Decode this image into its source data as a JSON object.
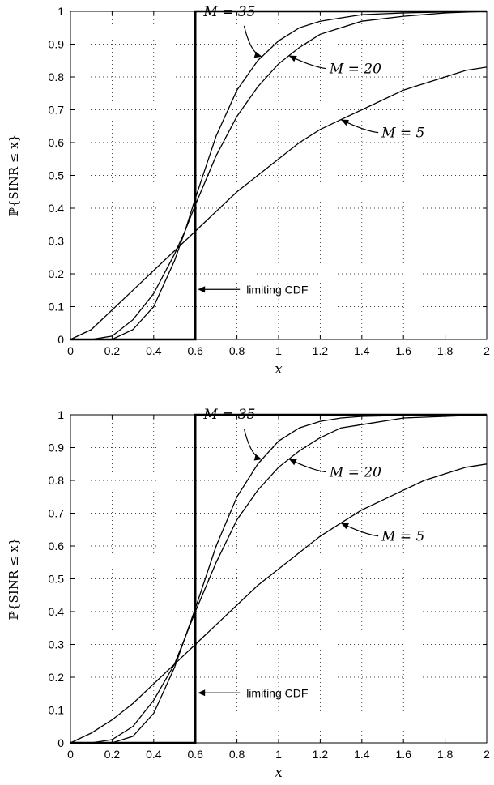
{
  "chart_data": [
    {
      "type": "line",
      "xlabel": "x",
      "ylabel": "ℙ{SINR ≤ x}",
      "xlim": [
        0,
        2
      ],
      "ylim": [
        0,
        1
      ],
      "xticks": [
        "0",
        "0.2",
        "0.4",
        "0.6",
        "0.8",
        "1",
        "1.2",
        "1.4",
        "1.6",
        "1.8",
        "2"
      ],
      "yticks": [
        "0",
        "0.1",
        "0.2",
        "0.3",
        "0.4",
        "0.5",
        "0.6",
        "0.7",
        "0.8",
        "0.9",
        "1"
      ],
      "grid": true,
      "series": [
        {
          "name": "M = 35",
          "x": [
            0,
            0.1,
            0.2,
            0.3,
            0.4,
            0.5,
            0.55,
            0.6,
            0.7,
            0.8,
            0.9,
            1.0,
            1.1,
            1.2,
            1.3,
            1.4,
            1.6,
            1.8,
            2.0
          ],
          "y": [
            0,
            0.0,
            0.0,
            0.03,
            0.1,
            0.24,
            0.33,
            0.43,
            0.62,
            0.76,
            0.85,
            0.91,
            0.95,
            0.97,
            0.98,
            0.99,
            0.995,
            0.998,
            1.0
          ]
        },
        {
          "name": "M = 20",
          "x": [
            0,
            0.1,
            0.2,
            0.3,
            0.4,
            0.5,
            0.55,
            0.6,
            0.7,
            0.8,
            0.9,
            1.0,
            1.1,
            1.2,
            1.3,
            1.4,
            1.6,
            1.8,
            2.0
          ],
          "y": [
            0,
            0.0,
            0.01,
            0.06,
            0.14,
            0.26,
            0.33,
            0.41,
            0.56,
            0.68,
            0.77,
            0.84,
            0.89,
            0.93,
            0.95,
            0.97,
            0.985,
            0.995,
            1.0
          ]
        },
        {
          "name": "M = 5",
          "x": [
            0,
            0.1,
            0.2,
            0.3,
            0.4,
            0.5,
            0.6,
            0.7,
            0.8,
            0.9,
            1.0,
            1.1,
            1.2,
            1.3,
            1.4,
            1.5,
            1.6,
            1.7,
            1.8,
            1.9,
            2.0
          ],
          "y": [
            0,
            0.03,
            0.09,
            0.15,
            0.21,
            0.27,
            0.33,
            0.39,
            0.45,
            0.5,
            0.55,
            0.6,
            0.64,
            0.67,
            0.7,
            0.73,
            0.76,
            0.78,
            0.8,
            0.82,
            0.83
          ]
        },
        {
          "name": "limiting CDF",
          "x": [
            0,
            0.6,
            0.6,
            2.0
          ],
          "y": [
            0,
            0,
            1,
            1
          ]
        }
      ],
      "annotations": [
        {
          "text": "M = 35",
          "series": "M = 35"
        },
        {
          "text": "M = 20",
          "series": "M = 20"
        },
        {
          "text": "M = 5",
          "series": "M = 5"
        },
        {
          "text": "limiting CDF",
          "series": "limiting CDF"
        }
      ]
    },
    {
      "type": "line",
      "xlabel": "x",
      "ylabel": "ℙ{SINR ≤ x}",
      "xlim": [
        0,
        2
      ],
      "ylim": [
        0,
        1
      ],
      "xticks": [
        "0",
        "0.2",
        "0.4",
        "0.6",
        "0.8",
        "1",
        "1.2",
        "1.4",
        "1.6",
        "1.8",
        "2"
      ],
      "yticks": [
        "0",
        "0.1",
        "0.2",
        "0.3",
        "0.4",
        "0.5",
        "0.6",
        "0.7",
        "0.8",
        "0.9",
        "1"
      ],
      "grid": true,
      "series": [
        {
          "name": "M = 35",
          "x": [
            0,
            0.1,
            0.2,
            0.3,
            0.4,
            0.5,
            0.55,
            0.6,
            0.7,
            0.8,
            0.9,
            1.0,
            1.1,
            1.2,
            1.3,
            1.4,
            1.6,
            1.8,
            2.0
          ],
          "y": [
            0,
            0.0,
            0.0,
            0.02,
            0.09,
            0.23,
            0.32,
            0.41,
            0.6,
            0.75,
            0.85,
            0.92,
            0.96,
            0.98,
            0.99,
            0.995,
            0.998,
            1.0,
            1.0
          ]
        },
        {
          "name": "M = 20",
          "x": [
            0,
            0.1,
            0.2,
            0.3,
            0.4,
            0.5,
            0.55,
            0.6,
            0.7,
            0.8,
            0.9,
            1.0,
            1.1,
            1.2,
            1.3,
            1.4,
            1.6,
            1.8,
            2.0
          ],
          "y": [
            0,
            0.0,
            0.01,
            0.05,
            0.13,
            0.24,
            0.32,
            0.4,
            0.55,
            0.68,
            0.77,
            0.84,
            0.89,
            0.93,
            0.96,
            0.97,
            0.99,
            0.995,
            1.0
          ]
        },
        {
          "name": "M = 5",
          "x": [
            0,
            0.1,
            0.2,
            0.3,
            0.4,
            0.5,
            0.6,
            0.7,
            0.8,
            0.9,
            1.0,
            1.1,
            1.2,
            1.3,
            1.4,
            1.5,
            1.6,
            1.7,
            1.8,
            1.9,
            2.0
          ],
          "y": [
            0,
            0.03,
            0.07,
            0.12,
            0.18,
            0.24,
            0.3,
            0.36,
            0.42,
            0.48,
            0.53,
            0.58,
            0.63,
            0.67,
            0.71,
            0.74,
            0.77,
            0.8,
            0.82,
            0.84,
            0.85
          ]
        },
        {
          "name": "limiting CDF",
          "x": [
            0,
            0.6,
            0.6,
            2.0
          ],
          "y": [
            0,
            0,
            1,
            1
          ]
        }
      ],
      "annotations": [
        {
          "text": "M = 35",
          "series": "M = 35"
        },
        {
          "text": "M = 20",
          "series": "M = 20"
        },
        {
          "text": "M = 5",
          "series": "M = 5"
        },
        {
          "text": "limiting CDF",
          "series": "limiting CDF"
        }
      ]
    }
  ]
}
